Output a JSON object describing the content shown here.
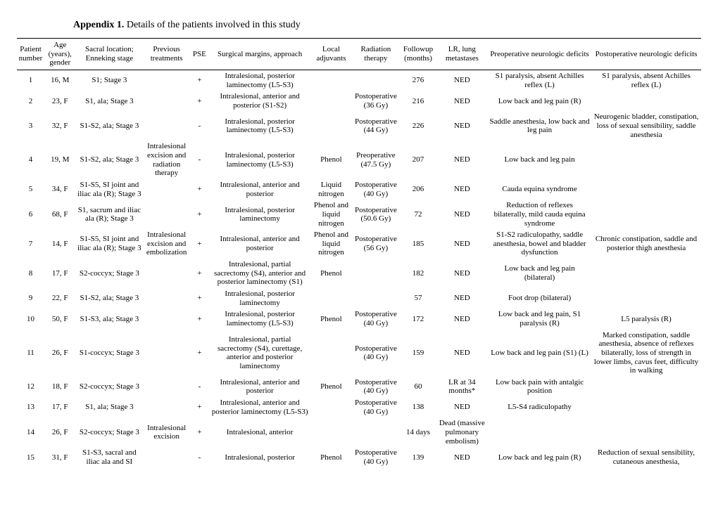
{
  "caption_bold": "Appendix 1.",
  "caption_rest": " Details of the patients involved in this study",
  "columns": [
    "Patient number",
    "Age (years), gender",
    "Sacral location; Enneking stage",
    "Previous treatments",
    "PSE",
    "Surgical margins, approach",
    "Local adjuvants",
    "Radiation therapy",
    "Followup (months)",
    "LR, lung metastases",
    "Preoperative neurologic deficits",
    "Postoperative neurologic deficits"
  ],
  "rows": [
    [
      "1",
      "16, M",
      "S1; Stage 3",
      "",
      "+",
      "Intralesional, posterior laminectomy (L5-S3)",
      "",
      "",
      "276",
      "NED",
      "S1 paralysis, absent Achilles reflex (L)",
      "S1 paralysis, absent Achilles reflex (L)"
    ],
    [
      "2",
      "23, F",
      "S1, ala; Stage 3",
      "",
      "+",
      "Intralesional, anterior and posterior (S1-S2)",
      "",
      "Postoperative (36 Gy)",
      "216",
      "NED",
      "Low back and leg pain (R)",
      ""
    ],
    [
      "3",
      "32, F",
      "S1-S2, ala; Stage 3",
      "",
      "-",
      "Intralesional, posterior laminectomy (L5-S3)",
      "",
      "Postoperative (44 Gy)",
      "226",
      "NED",
      "Saddle anesthesia, low back and leg pain",
      "Neurogenic bladder, constipation, loss of sexual sensibility, saddle anesthesia"
    ],
    [
      "4",
      "19, M",
      "S1-S2, ala; Stage 3",
      "Intralesional excision and radiation therapy",
      "-",
      "Intralesional, posterior laminectomy (L5-S3)",
      "Phenol",
      "Preoperative (47.5 Gy)",
      "207",
      "NED",
      "Low back and leg pain",
      ""
    ],
    [
      "5",
      "34, F",
      "S1-S5, SI joint and iliac ala (R); Stage 3",
      "",
      "+",
      "Intralesional, anterior and posterior",
      "Liquid nitrogen",
      "Postoperative (40 Gy)",
      "206",
      "NED",
      "Cauda equina syndrome",
      ""
    ],
    [
      "6",
      "68, F",
      "S1, sacrum and iliac ala (R); Stage 3",
      "",
      "+",
      "Intralesional, posterior laminectomy",
      "Phenol and liquid nitrogen",
      "Postoperative (50.6 Gy)",
      "72",
      "NED",
      "Reduction of reflexes bilaterally, mild cauda equina syndrome",
      ""
    ],
    [
      "7",
      "14, F",
      "S1-S5, SI joint and iliac ala (R); Stage 3",
      "Intralesional excision and embolization",
      "+",
      "Intralesional, anterior and posterior",
      "Phenol and liquid nitrogen",
      "Postoperative (56 Gy)",
      "185",
      "NED",
      "S1-S2 radiculopathy, saddle anesthesia, bowel and bladder dysfunction",
      "Chronic constipation, saddle and posterior thigh anesthesia"
    ],
    [
      "8",
      "17, F",
      "S2-coccyx; Stage 3",
      "",
      "+",
      "Intralesional, partial sacrectomy (S4), anterior and posterior laminectomy (S1)",
      "Phenol",
      "",
      "182",
      "NED",
      "Low back and leg pain (bilateral)",
      ""
    ],
    [
      "9",
      "22, F",
      "S1-S2, ala; Stage 3",
      "",
      "+",
      "Intralesional, posterior laminectomy",
      "",
      "",
      "57",
      "NED",
      "Foot drop (bilateral)",
      ""
    ],
    [
      "10",
      "50, F",
      "S1-S3, ala; Stage 3",
      "",
      "+",
      "Intralesional, posterior laminectomy (L5-S3)",
      "Phenol",
      "Postoperative (40 Gy)",
      "172",
      "NED",
      "Low back and leg pain, S1 paralysis (R)",
      "L5 paralysis (R)"
    ],
    [
      "11",
      "26, F",
      "S1-coccyx; Stage 3",
      "",
      "+",
      "Intralesional, partial sacrectomy (S4), curettage, anterior and posterior laminectomy",
      "",
      "Postoperative (40 Gy)",
      "159",
      "NED",
      "Low back and leg pain (S1) (L)",
      "Marked constipation, saddle anesthesia, absence of reflexes bilaterally, loss of strength in lower limbs, cavus feet, difficulty in walking"
    ],
    [
      "12",
      "18, F",
      "S2-coccyx; Stage 3",
      "",
      "-",
      "Intralesional, anterior and posterior",
      "Phenol",
      "Postoperative (40 Gy)",
      "60",
      "LR at 34 months*",
      "Low back pain with antalgic position",
      ""
    ],
    [
      "13",
      "17, F",
      "S1, ala; Stage 3",
      "",
      "+",
      "Intralesional, anterior and posterior laminectomy (L5-S3)",
      "",
      "Postoperative (40 Gy)",
      "138",
      "NED",
      "L5-S4 radiculopathy",
      ""
    ],
    [
      "14",
      "26, F",
      "S2-coccyx; Stage 3",
      "Intralesional excision",
      "+",
      "Intralesional, anterior",
      "",
      "",
      "14 days",
      "Dead (massive pulmonary embolism)",
      "",
      ""
    ],
    [
      "15",
      "31, F",
      "S1-S3, sacral and iliac ala and SI",
      "",
      "-",
      "Intralesional, posterior",
      "Phenol",
      "Postoperative (40 Gy)",
      "139",
      "NED",
      "Low back and leg pain (R)",
      "Reduction of sexual sensibility, cutaneous anesthesia,"
    ]
  ]
}
